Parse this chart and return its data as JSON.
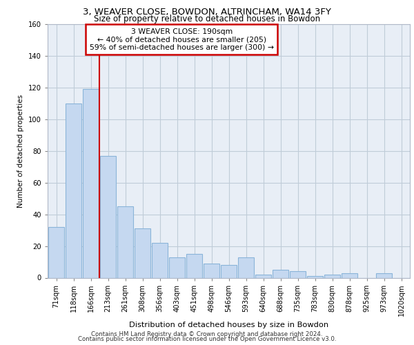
{
  "title": "3, WEAVER CLOSE, BOWDON, ALTRINCHAM, WA14 3FY",
  "subtitle": "Size of property relative to detached houses in Bowdon",
  "xlabel": "Distribution of detached houses by size in Bowdon",
  "ylabel": "Number of detached properties",
  "categories": [
    "71sqm",
    "118sqm",
    "166sqm",
    "213sqm",
    "261sqm",
    "308sqm",
    "356sqm",
    "403sqm",
    "451sqm",
    "498sqm",
    "546sqm",
    "593sqm",
    "640sqm",
    "688sqm",
    "735sqm",
    "783sqm",
    "830sqm",
    "878sqm",
    "925sqm",
    "973sqm",
    "1020sqm"
  ],
  "values": [
    32,
    110,
    119,
    77,
    45,
    31,
    22,
    13,
    15,
    9,
    8,
    13,
    2,
    5,
    4,
    1,
    2,
    3,
    0,
    3,
    0
  ],
  "bar_color": "#c5d8f0",
  "bar_edge_color": "#8ab4d9",
  "vline_x": 2.5,
  "vline_color": "#cc0000",
  "ylim": [
    0,
    160
  ],
  "yticks": [
    0,
    20,
    40,
    60,
    80,
    100,
    120,
    140,
    160
  ],
  "annotation_title": "3 WEAVER CLOSE: 190sqm",
  "annotation_line1": "← 40% of detached houses are smaller (205)",
  "annotation_line2": "59% of semi-detached houses are larger (300) →",
  "annotation_box_color": "#ffffff",
  "annotation_box_edge": "#cc0000",
  "footer_line1": "Contains HM Land Registry data © Crown copyright and database right 2024.",
  "footer_line2": "Contains public sector information licensed under the Open Government Licence v3.0.",
  "bg_color": "#ffffff",
  "plot_bg_color": "#e8eef6",
  "grid_color": "#c0ccd8"
}
